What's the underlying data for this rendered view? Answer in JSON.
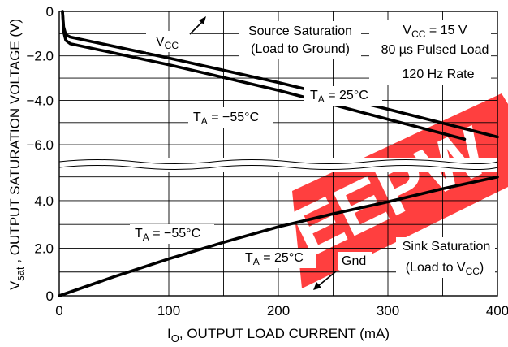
{
  "chart_data": {
    "type": "line",
    "title": "",
    "xlabel": {
      "main": "I",
      "sub": "O",
      "rest": ", OUTPUT LOAD CURRENT (mA)"
    },
    "ylabel": {
      "main": "V",
      "sub": "sat",
      "rest": " , OUTPUT SATURATION VOLTAGE (V)"
    },
    "x_ticks": [
      "0",
      "100",
      "200",
      "300",
      "400"
    ],
    "x_range": [
      0,
      400
    ],
    "grid": true,
    "upper_panel": {
      "name": "Source Saturation",
      "y_ticks": [
        "0",
        "−2.0",
        "−4.0",
        "−6.0"
      ],
      "y_range": [
        -6.8,
        0
      ],
      "series": [
        {
          "name": "T_A = 25°C",
          "points": [
            [
              3,
              0
            ],
            [
              4,
              -0.7
            ],
            [
              6,
              -1.05
            ],
            [
              10,
              -1.15
            ],
            [
              100,
              -2.1
            ],
            [
              200,
              -3.2
            ],
            [
              300,
              -4.4
            ],
            [
              400,
              -5.65
            ]
          ]
        },
        {
          "name": "T_A = −55°C",
          "points": [
            [
              3,
              0
            ],
            [
              4,
              -0.9
            ],
            [
              6,
              -1.3
            ],
            [
              10,
              -1.45
            ],
            [
              100,
              -2.4
            ],
            [
              200,
              -3.55
            ],
            [
              300,
              -4.85
            ],
            [
              370,
              -5.75
            ]
          ]
        }
      ]
    },
    "lower_panel": {
      "name": "Sink Saturation",
      "y_ticks": [
        "0",
        "2.0",
        "4.0"
      ],
      "y_range": [
        0,
        5.4
      ],
      "series": [
        {
          "name": "T_A = −55°C",
          "points": [
            [
              0,
              0
            ],
            [
              50,
              0.8
            ],
            [
              100,
              1.55
            ],
            [
              150,
              2.25
            ]
          ]
        },
        {
          "name": "T_A = 25°C",
          "points": [
            [
              150,
              2.25
            ],
            [
              200,
              2.9
            ],
            [
              250,
              3.45
            ],
            [
              300,
              3.95
            ],
            [
              350,
              4.5
            ],
            [
              400,
              5.0
            ]
          ]
        }
      ]
    },
    "annotations": {
      "vcc_label": {
        "main": "V",
        "sub": "CC",
        "rest": ""
      },
      "source_sat_1": "Source Saturation",
      "source_sat_2": "(Load to Ground)",
      "cond_vcc": {
        "main": "V",
        "sub": "CC",
        "rest": " = 15 V"
      },
      "cond_pulse": "80 µs Pulsed Load",
      "cond_rate": "120 Hz Rate",
      "ta25_upper": {
        "main": "T",
        "sub": "A",
        "rest": " = 25°C"
      },
      "ta55_upper": {
        "main": "T",
        "sub": "A",
        "rest": " = −55°C"
      },
      "ta55_lower": {
        "main": "T",
        "sub": "A",
        "rest": " = −55°C"
      },
      "ta25_lower": {
        "main": "T",
        "sub": "A",
        "rest": " = 25°C"
      },
      "gnd": "Gnd",
      "sink_sat_1": "Sink Saturation",
      "sink_sat_2": {
        "main": "(Load to V",
        "sub": "CC",
        "rest": ")"
      }
    },
    "watermark": "EEPW",
    "colors": {
      "line": "#000000",
      "grid": "#000000",
      "watermark": "#ff2a2a"
    }
  }
}
